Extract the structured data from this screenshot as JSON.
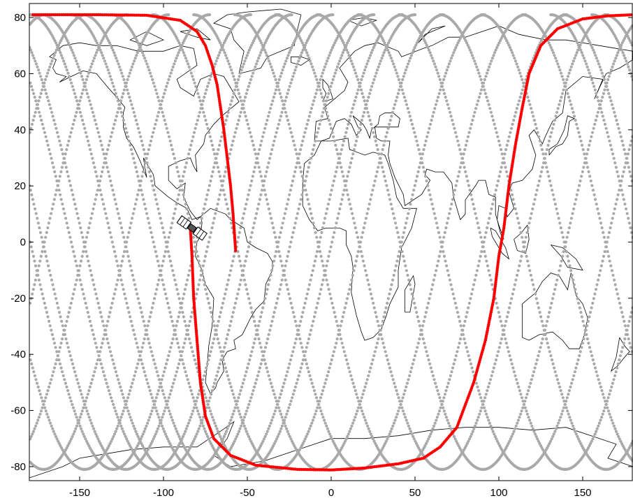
{
  "chart_data": {
    "type": "scatter",
    "title": "",
    "xlabel": "",
    "ylabel": "",
    "xlim": [
      -180,
      180
    ],
    "ylim": [
      -85,
      85
    ],
    "xticks": [
      -150,
      -100,
      -50,
      0,
      50,
      100,
      150
    ],
    "yticks": [
      -80,
      -60,
      -40,
      -20,
      0,
      20,
      40,
      60,
      80
    ],
    "grid": false,
    "background": "world coastline map",
    "series": [
      {
        "role": "previous ground tracks",
        "color": "#a9a9a9",
        "description": "Repeated sinusoidal satellite ground tracks between about -81 and 81 degrees latitude, spaced about 24.5 degrees in longitude",
        "amplitude": 81,
        "longitude_shift_per_orbit": 24.5,
        "orbit_count": 15
      },
      {
        "role": "current ground track",
        "color": "#ff0000",
        "points": [
          [
            -57,
            -3
          ],
          [
            -58.5,
            10
          ],
          [
            -60,
            20
          ],
          [
            -62,
            30
          ],
          [
            -64,
            40
          ],
          [
            -66,
            48
          ],
          [
            -68,
            56
          ],
          [
            -71,
            63
          ],
          [
            -75,
            70
          ],
          [
            -80,
            75
          ],
          [
            -90,
            79
          ],
          [
            -110,
            80.8
          ],
          [
            -140,
            81
          ],
          [
            -179,
            81
          ]
        ],
        "points_2": [
          [
            -84,
            5
          ],
          [
            -83,
            -5
          ],
          [
            -82,
            -20
          ],
          [
            -80,
            -35
          ],
          [
            -78,
            -50
          ],
          [
            -75,
            -62
          ],
          [
            -70,
            -70
          ],
          [
            -60,
            -76
          ],
          [
            -45,
            -79.5
          ],
          [
            -20,
            -81
          ],
          [
            0,
            -81.2
          ],
          [
            20,
            -80.5
          ],
          [
            40,
            -79
          ],
          [
            55,
            -77
          ],
          [
            65,
            -73
          ],
          [
            75,
            -66
          ],
          [
            85,
            -50
          ],
          [
            92,
            -35
          ],
          [
            97,
            -20
          ],
          [
            100,
            -5
          ],
          [
            103,
            5
          ],
          [
            106,
            20
          ],
          [
            110,
            35
          ],
          [
            114,
            48
          ],
          [
            118,
            60
          ],
          [
            125,
            70
          ],
          [
            135,
            76
          ],
          [
            150,
            79.5
          ],
          [
            165,
            80.6
          ],
          [
            180,
            81
          ]
        ]
      }
    ],
    "satellite_marker": {
      "lon": -83,
      "lat": 5,
      "icon": "satellite-icon"
    }
  }
}
